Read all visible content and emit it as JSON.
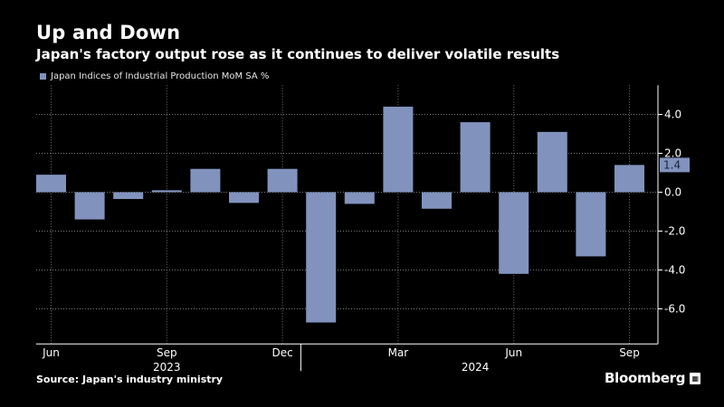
{
  "header": {
    "title": "Up and Down",
    "subtitle": "Japan's factory output rose as it continues to deliver volatile results"
  },
  "footer": {
    "source": "Source: Japan's industry ministry",
    "brand": "Bloomberg"
  },
  "colors": {
    "bar": "#8193bd",
    "background": "#000000",
    "grid": "#7a7a7a",
    "text": "#ffffff",
    "badge_text": "#1a2340"
  },
  "chart_data": {
    "type": "bar",
    "title": "Up and Down",
    "subtitle": "Japan's factory output rose as it continues to deliver volatile results",
    "series": [
      {
        "name": "Japan Indices of Industrial Production MoM SA %",
        "categories": [
          "2023-06",
          "2023-07",
          "2023-08",
          "2023-09",
          "2023-10",
          "2023-11",
          "2023-12",
          "2024-01",
          "2024-02",
          "2024-03",
          "2024-04",
          "2024-05",
          "2024-06",
          "2024-07",
          "2024-08",
          "2024-09"
        ],
        "values": [
          0.9,
          -1.4,
          -0.35,
          0.1,
          1.2,
          -0.55,
          1.2,
          -6.7,
          -0.6,
          4.4,
          -0.85,
          3.6,
          -4.2,
          3.1,
          -3.3,
          1.4
        ]
      }
    ],
    "last_value_label": "1.4",
    "x_tick_labels": [
      {
        "label": "Jun",
        "index": 0
      },
      {
        "label": "Sep",
        "index": 3
      },
      {
        "label": "Dec",
        "index": 6
      },
      {
        "label": "Mar",
        "index": 9
      },
      {
        "label": "Jun",
        "index": 12
      },
      {
        "label": "Sep",
        "index": 15
      }
    ],
    "year_labels": [
      {
        "label": "2023",
        "from_index": 0,
        "to_index": 6
      },
      {
        "label": "2024",
        "from_index": 7,
        "to_index": 15
      }
    ],
    "year_boundary_after_index": 6,
    "y_ticks": [
      4.0,
      2.0,
      0.0,
      -2.0,
      -4.0,
      -6.0
    ],
    "y_tick_labels": [
      "4.0",
      "2.0",
      "0.0",
      "-2.0",
      "-4.0",
      "-6.0"
    ],
    "ylim": [
      -7.8,
      5.5
    ],
    "yaxis_side": "right",
    "grid": "dotted",
    "legend_position": "top-left"
  }
}
